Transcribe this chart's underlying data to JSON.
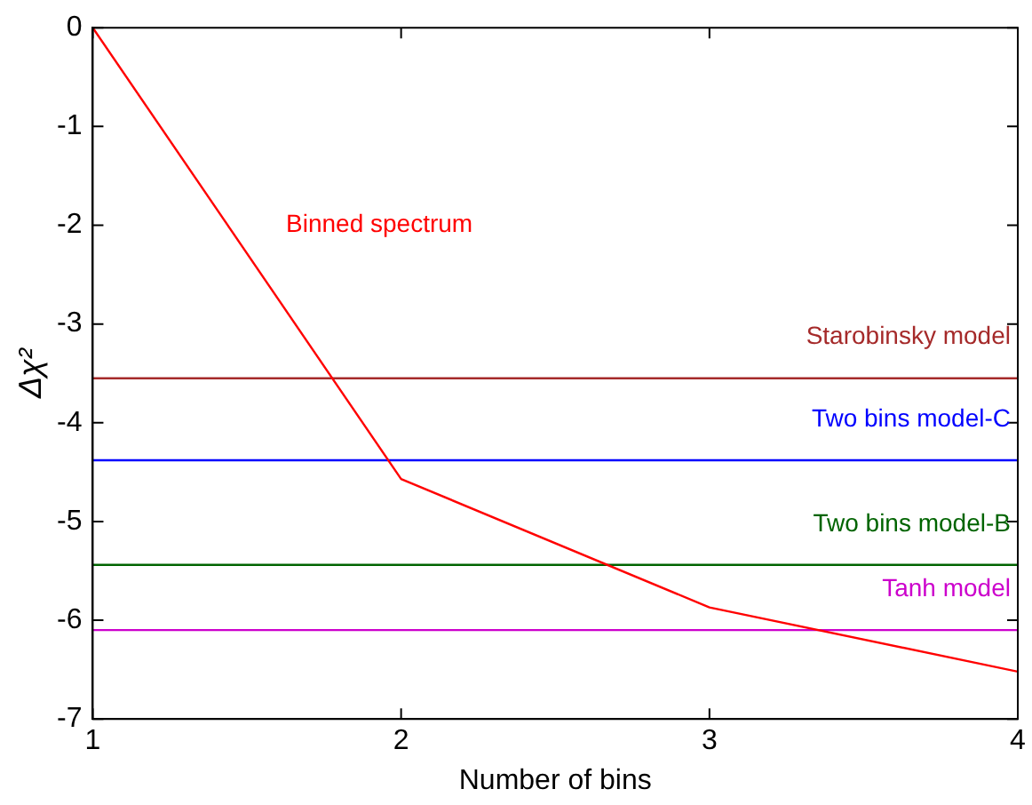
{
  "chart_data": {
    "type": "line",
    "xlabel": "Number of bins",
    "ylabel": "Δχ²",
    "xlim": [
      1,
      4
    ],
    "ylim": [
      -7,
      0
    ],
    "xticks": [
      1,
      2,
      3,
      4
    ],
    "yticks": [
      0,
      -1,
      -2,
      -3,
      -4,
      -5,
      -6,
      -7
    ],
    "grid": false,
    "legend": false,
    "marker": "none",
    "line_style": "solid",
    "series": [
      {
        "name": "Binned spectrum",
        "color": "#ff0000",
        "x": [
          1,
          2,
          3,
          4
        ],
        "values": [
          0,
          -4.57,
          -5.87,
          -6.52
        ]
      },
      {
        "name": "Starobinsky model",
        "color": "#a52a2a",
        "x": [
          1,
          4
        ],
        "values": [
          -3.55,
          -3.55
        ]
      },
      {
        "name": "Two bins model-C",
        "color": "#0000ff",
        "x": [
          1,
          4
        ],
        "values": [
          -4.38,
          -4.38
        ]
      },
      {
        "name": "Two bins model-B",
        "color": "#006400",
        "x": [
          1,
          4
        ],
        "values": [
          -5.44,
          -5.44
        ]
      },
      {
        "name": "Tanh model",
        "color": "#cc00cc",
        "x": [
          1,
          4
        ],
        "values": [
          -6.1,
          -6.1
        ]
      }
    ]
  }
}
